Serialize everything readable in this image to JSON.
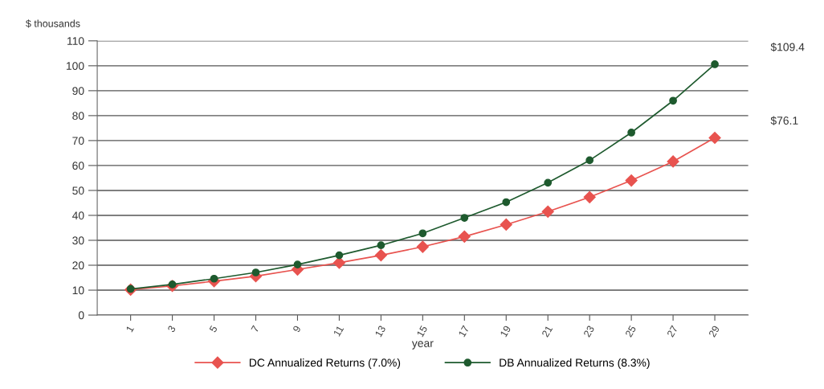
{
  "chart_data": {
    "type": "line",
    "ylabel": "$ thousands",
    "xlabel": "year",
    "categories": [
      "1",
      "3",
      "5",
      "7",
      "9",
      "11",
      "13",
      "15",
      "17",
      "19",
      "21",
      "23",
      "25",
      "27",
      "29"
    ],
    "series": [
      {
        "name": "DC Annualized Returns (7.0%)",
        "color": "#e8534f",
        "marker": "diamond",
        "values": [
          10.2,
          11.7,
          13.6,
          15.6,
          18.3,
          21.0,
          24.0,
          27.4,
          31.5,
          36.3,
          41.5,
          47.3,
          54.0,
          61.6,
          71.1
        ]
      },
      {
        "name": "DB Annualized Returns (8.3%)",
        "color": "#1e5a2e",
        "marker": "circle",
        "values": [
          10.5,
          12.3,
          14.6,
          17.1,
          20.3,
          24.0,
          28.0,
          32.8,
          39.0,
          45.3,
          53.1,
          62.1,
          73.2,
          86.0,
          100.6
        ]
      }
    ],
    "ylim": [
      0,
      110
    ],
    "yticks": [
      0,
      10,
      20,
      30,
      40,
      50,
      60,
      70,
      80,
      90,
      100,
      110
    ],
    "grid": "y",
    "legend": "bottom",
    "line_style": "solid",
    "annotations": [
      "$109.4",
      "$76.1"
    ]
  }
}
